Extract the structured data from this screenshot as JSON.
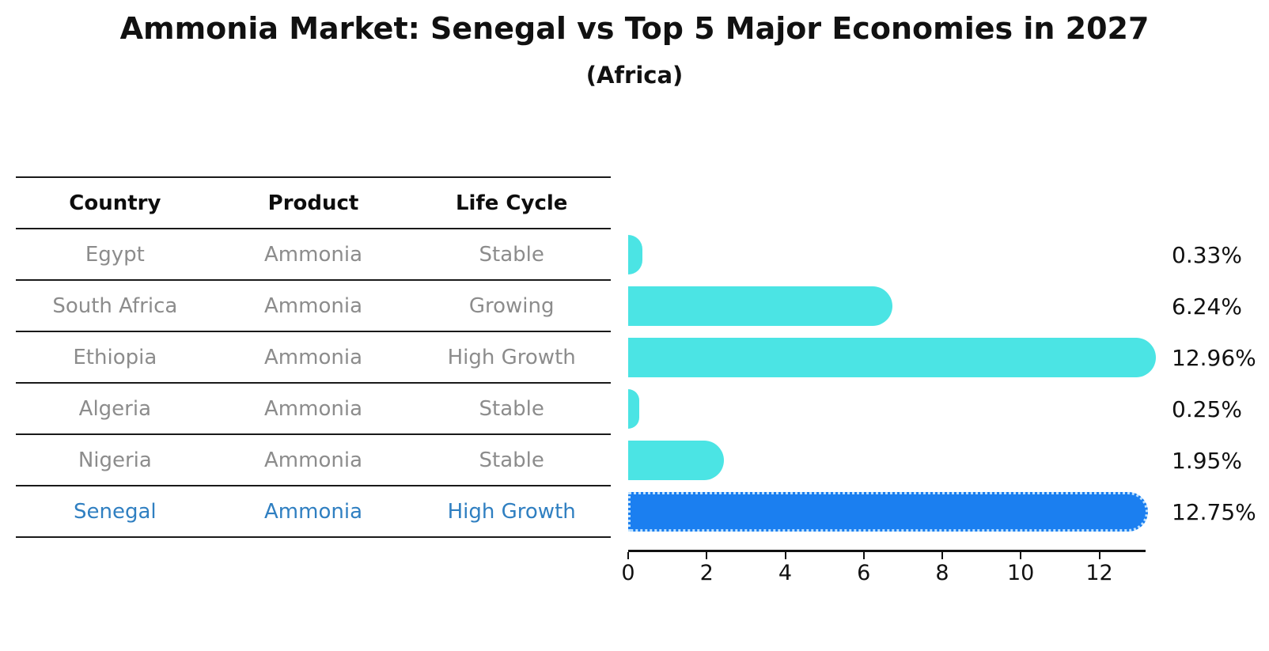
{
  "title": "Ammonia Market: Senegal vs Top 5 Major Economies in 2027",
  "subtitle": "(Africa)",
  "table": {
    "headers": [
      "Country",
      "Product",
      "Life Cycle"
    ],
    "rows": [
      {
        "country": "Egypt",
        "product": "Ammonia",
        "life_cycle": "Stable",
        "highlight": false
      },
      {
        "country": "South Africa",
        "product": "Ammonia",
        "life_cycle": "Growing",
        "highlight": false
      },
      {
        "country": "Ethiopia",
        "product": "Ammonia",
        "life_cycle": "High Growth",
        "highlight": false
      },
      {
        "country": "Algeria",
        "product": "Ammonia",
        "life_cycle": "Stable",
        "highlight": false
      },
      {
        "country": "Nigeria",
        "product": "Ammonia",
        "life_cycle": "Stable",
        "highlight": false
      },
      {
        "country": "Senegal",
        "product": "Ammonia",
        "life_cycle": "High Growth",
        "highlight": true
      }
    ]
  },
  "chart_data": {
    "type": "bar",
    "orientation": "horizontal",
    "title": "Ammonia Market: Senegal vs Top 5 Major Economies in 2027",
    "subtitle": "(Africa)",
    "categories": [
      "Egypt",
      "South Africa",
      "Ethiopia",
      "Algeria",
      "Nigeria",
      "Senegal"
    ],
    "values": [
      0.33,
      6.24,
      12.96,
      0.25,
      1.95,
      12.75
    ],
    "value_labels": [
      "0.33%",
      "6.24%",
      "12.96%",
      "0.25%",
      "1.95%",
      "12.75%"
    ],
    "x_ticks": [
      0,
      2,
      4,
      6,
      8,
      10,
      12
    ],
    "xlim": [
      0,
      13.2
    ],
    "xlabel": "",
    "ylabel": "",
    "grid": false,
    "legend": "none",
    "highlight_index": 5,
    "colors": {
      "bar_default": "#4be4e4",
      "bar_highlight": "#1b7ff0",
      "highlight_text": "#2f7fc1",
      "row_text": "#8c8c8c",
      "header_text": "#0d0d0d",
      "axis": "#111111"
    }
  }
}
